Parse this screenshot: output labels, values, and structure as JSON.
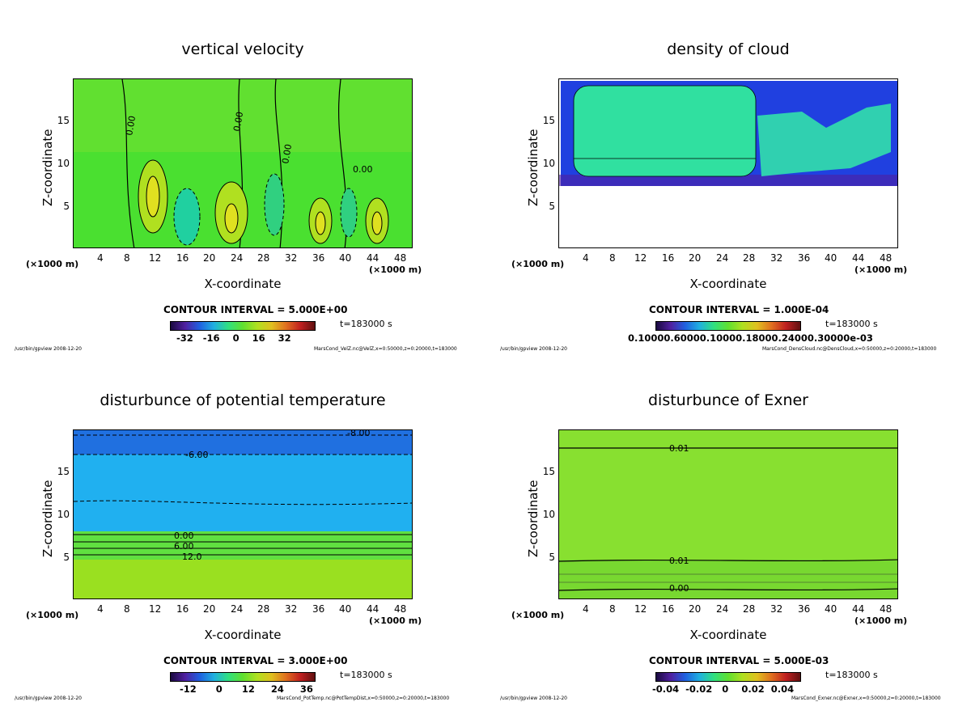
{
  "common": {
    "xlabel": "X-coordinate",
    "ylabel": "Z-coordinate",
    "unit_left": "(×1000 m)",
    "unit_right": "(×1000 m)",
    "x_ticks": [
      "4",
      "8",
      "12",
      "16",
      "20",
      "24",
      "28",
      "32",
      "36",
      "40",
      "44",
      "48"
    ],
    "y_ticks": [
      "5",
      "10",
      "15"
    ],
    "time": "t=183000 s",
    "footer_left": "/usr/bin/gpview  2008-12-20"
  },
  "chart_data": [
    {
      "type": "heatmap",
      "title": "vertical velocity",
      "xlabel": "X-coordinate",
      "ylabel": "Z-coordinate",
      "xlim": [
        0,
        50
      ],
      "ylim": [
        0,
        20
      ],
      "contour_interval": "CONTOUR INTERVAL = 5.000E+00",
      "colorbar_ticks": "-32   -16    0    16    32",
      "footer_right": "MarsCond_VelZ.nc@VelZ,x=0:50000,z=0:20000,t=183000",
      "contour_labels": [
        "0.00",
        "0.00",
        "0.00",
        "0.00"
      ],
      "updraft_cores_x": [
        12,
        24,
        36,
        44.5
      ],
      "downdraft_cores_x": [
        16.5,
        29,
        40
      ]
    },
    {
      "type": "heatmap",
      "title": "density of cloud",
      "xlabel": "X-coordinate",
      "ylabel": "Z-coordinate",
      "xlim": [
        0,
        50
      ],
      "ylim": [
        0,
        20
      ],
      "contour_interval": "CONTOUR INTERVAL = 1.000E-04",
      "colorbar_ticks": "0.10000.60000.10000.18000.24000.30000e-03",
      "footer_right": "MarsCond_DensCloud.nc@DensCloud,x=0:50000,z=0:20000,t=183000",
      "cloud_base_z": 7.5,
      "cloud_top_z": 19
    },
    {
      "type": "heatmap",
      "title": "disturbunce of potential temperature",
      "xlabel": "X-coordinate",
      "ylabel": "Z-coordinate",
      "xlim": [
        0,
        50
      ],
      "ylim": [
        0,
        20
      ],
      "contour_interval": "CONTOUR INTERVAL = 3.000E+00",
      "colorbar_ticks": "-12      0      12     24     36",
      "footer_right": "MarsCond_PotTemp.nc@PotTempDist,x=0:50000,z=0:20000,t=183000",
      "contour_labels": [
        "-8.00",
        "-6.00",
        "0.00",
        "6.00",
        "12.0"
      ]
    },
    {
      "type": "heatmap",
      "title": "disturbunce of Exner",
      "xlabel": "X-coordinate",
      "ylabel": "Z-coordinate",
      "xlim": [
        0,
        50
      ],
      "ylim": [
        0,
        20
      ],
      "contour_interval": "CONTOUR INTERVAL = 5.000E-03",
      "colorbar_ticks": "-0.04  -0.02   0    0.02  0.04",
      "footer_right": "MarsCond_Exner.nc@Exner,x=0:50000,z=0:20000,t=183000",
      "contour_labels": [
        "0.01",
        "0.01",
        "0.00"
      ]
    }
  ]
}
